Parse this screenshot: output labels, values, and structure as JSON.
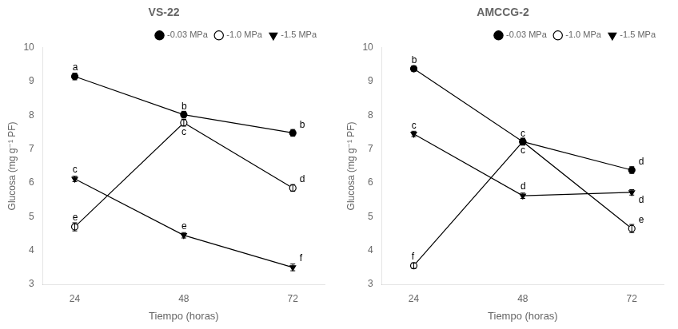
{
  "chart_data": [
    {
      "type": "line",
      "title": "VS-22",
      "x": [
        24,
        48,
        72
      ],
      "series": [
        {
          "name": "-0.03 MPa",
          "color": "black",
          "marker": "circle",
          "values": [
            9.15,
            8.02,
            7.48
          ],
          "yerr": [
            0.1,
            0.1,
            0.1
          ]
        },
        {
          "name": "-1.0 MPa",
          "color": "black",
          "marker": "open_circle",
          "values": [
            4.7,
            7.78,
            5.85
          ],
          "yerr": [
            0.12,
            0.1,
            0.1
          ]
        },
        {
          "name": "-1.5 MPa",
          "color": "black",
          "marker": "triangle_down",
          "values": [
            6.12,
            4.45,
            3.5
          ],
          "yerr": [
            0.08,
            0.08,
            0.1
          ]
        }
      ],
      "annotations": [
        {
          "x": 23.5,
          "y": 9.27,
          "text": "a"
        },
        {
          "x": 47.5,
          "y": 8.12,
          "text": "b"
        },
        {
          "x": 73.5,
          "y": 7.58,
          "text": "b"
        },
        {
          "x": 23.5,
          "y": 4.82,
          "text": "e"
        },
        {
          "x": 47.5,
          "y": 7.36,
          "text": "c"
        },
        {
          "x": 73.5,
          "y": 5.95,
          "text": "d"
        },
        {
          "x": 23.5,
          "y": 6.24,
          "text": "c"
        },
        {
          "x": 47.5,
          "y": 4.57,
          "text": "e"
        },
        {
          "x": 73.5,
          "y": 3.62,
          "text": "f"
        }
      ],
      "xlabel": "Tiempo (horas)",
      "ylabel": "Glucosa (mg g⁻¹ PF)",
      "xlim": [
        17,
        79
      ],
      "ylim": [
        3,
        10
      ],
      "xticks": [
        24,
        48,
        72
      ],
      "yticks": [
        3,
        4,
        5,
        6,
        7,
        8,
        9,
        10
      ],
      "grid": false,
      "legend": "upper right"
    },
    {
      "type": "line",
      "title": "AMCCG-2",
      "x": [
        24,
        48,
        72
      ],
      "series": [
        {
          "name": "-0.03 MPa",
          "color": "black",
          "marker": "circle",
          "values": [
            9.38,
            7.22,
            6.38
          ],
          "yerr": [
            0.08,
            0.1,
            0.1
          ]
        },
        {
          "name": "-1.0 MPa",
          "color": "black",
          "marker": "open_circle",
          "values": [
            3.55,
            7.22,
            4.65
          ],
          "yerr": [
            0.08,
            0.1,
            0.12
          ]
        },
        {
          "name": "-1.5 MPa",
          "color": "black",
          "marker": "triangle_down",
          "values": [
            7.45,
            5.62,
            5.72
          ],
          "yerr": [
            0.08,
            0.08,
            0.08
          ]
        }
      ],
      "annotations": [
        {
          "x": 23.5,
          "y": 9.48,
          "text": "b"
        },
        {
          "x": 47.5,
          "y": 7.32,
          "text": "c"
        },
        {
          "x": 73.5,
          "y": 6.48,
          "text": "d"
        },
        {
          "x": 23.5,
          "y": 3.67,
          "text": "f"
        },
        {
          "x": 47.5,
          "y": 6.82,
          "text": "c"
        },
        {
          "x": 73.5,
          "y": 4.75,
          "text": "e"
        },
        {
          "x": 23.5,
          "y": 7.55,
          "text": "c"
        },
        {
          "x": 47.5,
          "y": 5.74,
          "text": "d"
        },
        {
          "x": 73.5,
          "y": 5.34,
          "text": "d"
        }
      ],
      "xlabel": "Tiempo (horas)",
      "ylabel": "Glucosa (mg g⁻¹ PF)",
      "xlim": [
        17,
        79
      ],
      "ylim": [
        3,
        10
      ],
      "xticks": [
        24,
        48,
        72
      ],
      "yticks": [
        3,
        4,
        5,
        6,
        7,
        8,
        9,
        10
      ],
      "grid": false,
      "legend": "upper right"
    }
  ]
}
